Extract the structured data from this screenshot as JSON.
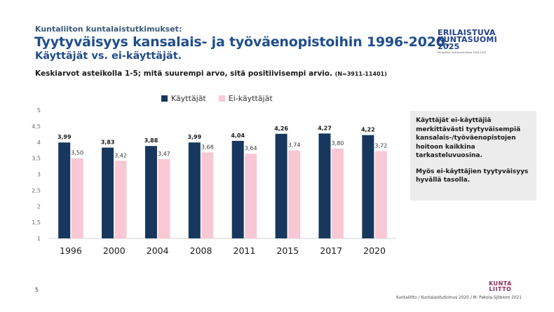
{
  "header": {
    "kicker": "Kuntaliiton kuntalaistutkimukset:",
    "title_line1": "Tyytyväisyys kansalais- ja työväenopistoihin 1996-2020.",
    "title_line2": "Käyttäjät vs. ei-käyttäjät.",
    "subtitle": "Keskiarvot asteikolla 1-5; mitä suurempi arvo, sitä positiivisempi arvio.",
    "subtitle_n": "(N=3911-11401)"
  },
  "logo": {
    "line1": "ERILAISTUVA",
    "line2": "KUNTASUOMI",
    "line3": "2025",
    "tagline": "Kuntaliiton tutkimusohjelma 2020-2022"
  },
  "callout": {
    "p1": "Käyttäjät ei-käyttäjiä merkittävästi tyytyväisempiä kansalais-/työväenopistojen hoitoon kaikkina tarkasteluvuosina.",
    "p2": "Myös ei-käyttäjien tyytyväisyys hyvällä tasolla."
  },
  "footer": {
    "page_number": "5",
    "source": "Kuntaliitto / Kuntalaistutkimus 2020 / M. Pekola-Sjöblom 2021",
    "org_logo_line1": "KUNTA",
    "org_logo_line2": "LIITTO"
  },
  "colors": {
    "users": "#17375e",
    "non_users": "#f8c8d4",
    "title": "#1f4e8c"
  },
  "chart_data": {
    "type": "bar",
    "categories": [
      "1996",
      "2000",
      "2004",
      "2008",
      "2011",
      "2015",
      "2017",
      "2020"
    ],
    "series": [
      {
        "name": "Käyttäjät",
        "values": [
          3.99,
          3.83,
          3.88,
          3.99,
          4.04,
          4.26,
          4.27,
          4.22
        ],
        "labels": [
          "3,99",
          "3,83",
          "3,88",
          "3,99",
          "4,04",
          "4,26",
          "4,27",
          "4,22"
        ]
      },
      {
        "name": "Ei-käyttäjät",
        "values": [
          3.5,
          3.42,
          3.47,
          3.68,
          3.64,
          3.74,
          3.8,
          3.72
        ],
        "labels": [
          "3,50",
          "3,42",
          "3,47",
          "3,68",
          "3,64",
          "3,74",
          "3,80",
          "3,72"
        ]
      }
    ],
    "yticks": [
      "1",
      "1,5",
      "2",
      "2,5",
      "3",
      "3,5",
      "4",
      "4,5",
      "5"
    ],
    "ylim": [
      1,
      5
    ],
    "grid": false,
    "legend": "top"
  }
}
